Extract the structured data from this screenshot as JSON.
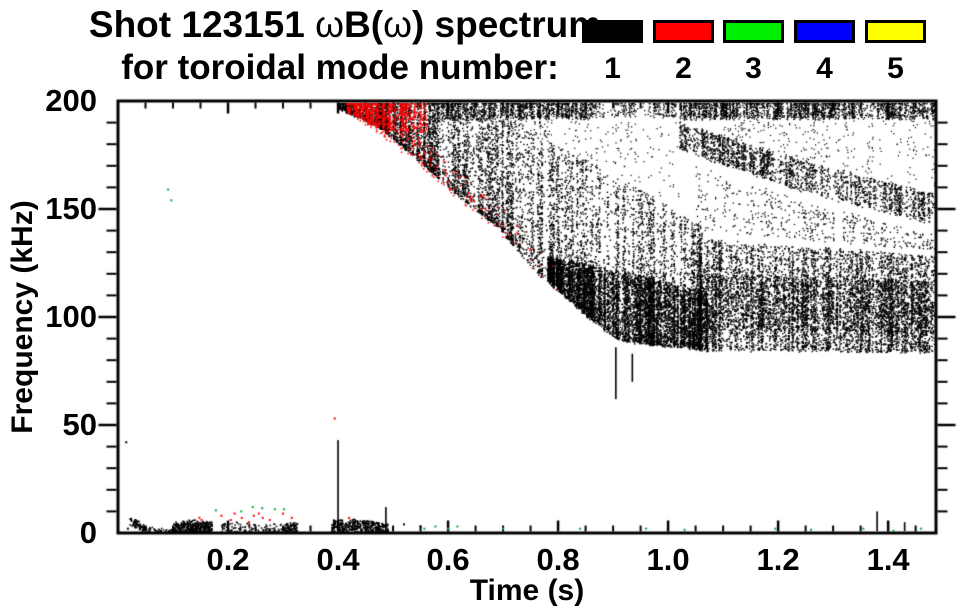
{
  "title": {
    "prefix": "Shot 123151 ",
    "omega1": "ω",
    "mid": "B(",
    "omega2": "ω",
    "suffix": ") spectrum",
    "line2": "for toroidal mode number:"
  },
  "legend": {
    "items": [
      {
        "label": "1",
        "color": "#000000"
      },
      {
        "label": "2",
        "color": "#ff0000"
      },
      {
        "label": "3",
        "color": "#00ee00"
      },
      {
        "label": "4",
        "color": "#0000ff"
      },
      {
        "label": "5",
        "color": "#ffff00"
      }
    ]
  },
  "chart_data": {
    "type": "scatter",
    "title": "Shot 123151 ωB(ω) spectrum",
    "subtitle": "for toroidal mode number:",
    "xlabel": "Time (s)",
    "ylabel": "Frequency (kHz)",
    "xlim": [
      0,
      1.487
    ],
    "ylim": [
      0,
      200
    ],
    "grid": false,
    "legend_position": "top-right",
    "x_major_ticks": [
      0.2,
      0.4,
      0.6,
      0.8,
      1.0,
      1.2,
      1.4
    ],
    "x_tick_labels": [
      "0.2",
      "0.4",
      "0.6",
      "0.8",
      "1.0",
      "1.2",
      "1.4"
    ],
    "x_minor_step": 0.05,
    "y_major_ticks": [
      0,
      50,
      100,
      150,
      200
    ],
    "y_tick_labels": [
      "0",
      "50",
      "100",
      "150",
      "200"
    ],
    "y_minor_step": 10,
    "modes": [
      {
        "mode": 1,
        "color": "#000000"
      },
      {
        "mode": 2,
        "color": "#ff0000"
      },
      {
        "mode": 3,
        "color": "#00ee00"
      },
      {
        "mode": 4,
        "color": "#0000ff"
      },
      {
        "mode": 5,
        "color": "#ffff00"
      }
    ],
    "seed": 123151,
    "bands": [
      {
        "name": "main-chirp-cloud",
        "color": "#000000",
        "t": [
          0.4,
          1.07
        ],
        "upper": [
          [
            0.4,
            200
          ],
          [
            0.62,
            200
          ],
          [
            0.7,
            191
          ],
          [
            0.8,
            179
          ],
          [
            0.9,
            166
          ],
          [
            1.0,
            152
          ],
          [
            1.07,
            140
          ]
        ],
        "lower": [
          [
            0.4,
            197
          ],
          [
            0.47,
            189
          ],
          [
            0.55,
            172
          ],
          [
            0.62,
            156
          ],
          [
            0.69,
            142
          ],
          [
            0.76,
            121
          ],
          [
            0.84,
            104
          ],
          [
            0.91,
            90
          ],
          [
            0.98,
            87
          ],
          [
            1.07,
            86
          ]
        ],
        "n": 9000,
        "bias": 1.45,
        "streak": 1.6,
        "size": 1.4
      },
      {
        "name": "dense-core",
        "color": "#000000",
        "t": [
          0.78,
          1.07
        ],
        "upper": [
          [
            0.78,
            128
          ],
          [
            0.9,
            122
          ],
          [
            1.0,
            116
          ],
          [
            1.07,
            112
          ]
        ],
        "lower": [
          [
            0.78,
            118
          ],
          [
            0.84,
            103
          ],
          [
            0.91,
            89
          ],
          [
            1.07,
            85
          ]
        ],
        "n": 5200,
        "bias": 1.0,
        "streak": 1.2,
        "size": 1.5
      },
      {
        "name": "right-mass",
        "color": "#000000",
        "t": [
          1.05,
          1.487
        ],
        "upper": [
          [
            1.05,
            137
          ],
          [
            1.2,
            133
          ],
          [
            1.35,
            131
          ],
          [
            1.487,
            128
          ]
        ],
        "lower": [
          [
            1.05,
            85
          ],
          [
            1.487,
            84
          ]
        ],
        "n": 6200,
        "bias": 1.15,
        "streak": 1.8,
        "size": 1.4
      },
      {
        "name": "right-core-stripe",
        "color": "#000000",
        "t": [
          1.05,
          1.487
        ],
        "upper": [
          [
            1.05,
            120
          ],
          [
            1.487,
            117
          ]
        ],
        "lower": [
          [
            1.05,
            95
          ],
          [
            1.487,
            92
          ]
        ],
        "n": 2300,
        "bias": 1.0,
        "streak": 1.6,
        "size": 1.5
      },
      {
        "name": "top-band-early",
        "color": "#000000",
        "t": [
          0.58,
          0.86
        ],
        "upper": [
          [
            0.58,
            200
          ],
          [
            0.86,
            200
          ]
        ],
        "lower": [
          [
            0.58,
            192
          ],
          [
            0.86,
            192
          ]
        ],
        "n": 1400,
        "bias": 1.0,
        "streak": 1.4,
        "size": 1.3
      },
      {
        "name": "top-band-thin",
        "color": "#000000",
        "t": [
          0.86,
          1.02
        ],
        "upper": [
          [
            0.86,
            200
          ],
          [
            1.02,
            200
          ]
        ],
        "lower": [
          [
            0.86,
            193
          ],
          [
            1.02,
            193
          ]
        ],
        "n": 260,
        "bias": 1.0,
        "streak": 1.6,
        "size": 1.3
      },
      {
        "name": "top-band-late",
        "color": "#000000",
        "t": [
          1.02,
          1.487
        ],
        "upper": [
          [
            1.02,
            200
          ],
          [
            1.487,
            200
          ]
        ],
        "lower": [
          [
            1.02,
            192
          ],
          [
            1.487,
            192
          ]
        ],
        "n": 2300,
        "bias": 1.0,
        "streak": 1.5,
        "size": 1.3
      },
      {
        "name": "diagonal-band",
        "color": "#000000",
        "t": [
          1.02,
          1.487
        ],
        "upper": [
          [
            1.02,
            190
          ],
          [
            1.25,
            172
          ],
          [
            1.487,
            157
          ]
        ],
        "lower": [
          [
            1.02,
            178
          ],
          [
            1.25,
            158
          ],
          [
            1.487,
            143
          ]
        ],
        "n": 2100,
        "bias": 1.0,
        "streak": 1.9,
        "size": 1.4
      },
      {
        "name": "between-sparse",
        "color": "#000000",
        "t": [
          1.05,
          1.487
        ],
        "upper": [
          [
            1.05,
            171
          ],
          [
            1.25,
            153
          ],
          [
            1.487,
            138
          ]
        ],
        "lower": [
          [
            1.05,
            140
          ],
          [
            1.25,
            136
          ],
          [
            1.487,
            131
          ]
        ],
        "n": 520,
        "bias": 1.0,
        "streak": 2.2,
        "size": 1.3
      },
      {
        "name": "upper-right-specks",
        "color": "#000000",
        "t": [
          1.1,
          1.487
        ],
        "upper": [
          [
            1.1,
            191
          ],
          [
            1.487,
            191
          ]
        ],
        "lower": [
          [
            1.1,
            183
          ],
          [
            1.25,
            173
          ],
          [
            1.487,
            158
          ]
        ],
        "n": 260,
        "bias": 1.0,
        "streak": 2.5,
        "size": 1.2
      },
      {
        "name": "gap-specks",
        "color": "#000000",
        "t": [
          0.7,
          1.02
        ],
        "upper": [
          [
            0.7,
            191
          ],
          [
            1.02,
            191
          ]
        ],
        "lower": [
          [
            0.7,
            190
          ],
          [
            0.8,
            180
          ],
          [
            0.9,
            167
          ],
          [
            1.02,
            152
          ]
        ],
        "n": 200,
        "bias": 1.0,
        "streak": 2.4,
        "size": 1.2
      },
      {
        "name": "red-onset-blob",
        "color": "#ff0000",
        "t": [
          0.415,
          0.56
        ],
        "upper": [
          [
            0.415,
            200
          ],
          [
            0.56,
            200
          ]
        ],
        "lower": [
          [
            0.415,
            195
          ],
          [
            0.46,
            189
          ],
          [
            0.52,
            186
          ],
          [
            0.56,
            184
          ]
        ],
        "n": 800,
        "bias": 1.0,
        "streak": 1.2,
        "size": 1.5
      },
      {
        "name": "red-edge-trail",
        "color": "#ff0000",
        "t": [
          0.44,
          0.8
        ],
        "upper": [
          [
            0.44,
            201
          ],
          [
            0.55,
            183
          ],
          [
            0.62,
            167
          ],
          [
            0.69,
            153
          ],
          [
            0.76,
            132
          ],
          [
            0.8,
            123
          ]
        ],
        "lower": [
          [
            0.44,
            191
          ],
          [
            0.55,
            170
          ],
          [
            0.62,
            154
          ],
          [
            0.69,
            140
          ],
          [
            0.76,
            119
          ],
          [
            0.8,
            111
          ]
        ],
        "n": 560,
        "bias": 1.0,
        "streak": 1.3,
        "size": 1.5,
        "tdecay": 1.1
      },
      {
        "name": "low-f-cluster-a",
        "color": "#000000",
        "t": [
          0.02,
          0.05
        ],
        "upper": [
          [
            0.02,
            8
          ],
          [
            0.05,
            3
          ]
        ],
        "lower": [
          [
            0.02,
            4
          ],
          [
            0.05,
            0.5
          ]
        ],
        "n": 80,
        "size": 1.6
      },
      {
        "name": "low-f-sparse-ab",
        "color": "#000000",
        "t": [
          0.05,
          0.1
        ],
        "upper": [
          [
            0.05,
            3
          ],
          [
            0.1,
            2
          ]
        ],
        "lower": [
          [
            0.05,
            0.3
          ],
          [
            0.1,
            0.3
          ]
        ],
        "n": 45,
        "size": 1.5
      },
      {
        "name": "low-f-cluster-b",
        "color": "#000000",
        "t": [
          0.1,
          0.17
        ],
        "upper": [
          [
            0.1,
            5
          ],
          [
            0.13,
            6
          ],
          [
            0.17,
            5
          ]
        ],
        "lower": [
          [
            0.1,
            0.5
          ],
          [
            0.17,
            0.5
          ]
        ],
        "n": 360,
        "size": 1.6
      },
      {
        "name": "low-f-cluster-c",
        "color": "#000000",
        "t": [
          0.185,
          0.3
        ],
        "upper": [
          [
            0.185,
            5
          ],
          [
            0.3,
            4
          ]
        ],
        "lower": [
          [
            0.185,
            0.5
          ],
          [
            0.3,
            0.5
          ]
        ],
        "n": 120,
        "size": 1.5
      },
      {
        "name": "low-f-cluster-d",
        "color": "#000000",
        "t": [
          0.3,
          0.325
        ],
        "upper": [
          [
            0.3,
            5
          ],
          [
            0.325,
            5
          ]
        ],
        "lower": [
          [
            0.3,
            0.8
          ],
          [
            0.325,
            0.8
          ]
        ],
        "n": 80,
        "size": 1.6
      },
      {
        "name": "low-f-cluster-e",
        "color": "#000000",
        "t": [
          0.387,
          0.49
        ],
        "upper": [
          [
            0.387,
            6
          ],
          [
            0.43,
            6
          ],
          [
            0.49,
            5
          ]
        ],
        "lower": [
          [
            0.387,
            0.5
          ],
          [
            0.49,
            0.5
          ]
        ],
        "n": 380,
        "size": 1.6
      }
    ],
    "streaks": [
      {
        "t": 0.4,
        "f": [
          0,
          43
        ],
        "color": "#000000"
      },
      {
        "t": 0.487,
        "f": [
          0,
          12
        ],
        "color": "#000000"
      },
      {
        "t": 0.905,
        "f": [
          62,
          86
        ],
        "color": "#000000"
      },
      {
        "t": 0.935,
        "f": [
          70,
          83
        ],
        "color": "#000000"
      },
      {
        "t": 1.38,
        "f": [
          0,
          10
        ],
        "color": "#000000"
      },
      {
        "t": 1.43,
        "f": [
          0,
          5
        ],
        "color": "#000000"
      }
    ],
    "dots": [
      {
        "name": "red-low-f-dots",
        "color": "#ff0000",
        "size": 2,
        "pts": [
          [
            0.148,
            7
          ],
          [
            0.152,
            6
          ],
          [
            0.188,
            8
          ],
          [
            0.205,
            6
          ],
          [
            0.212,
            9
          ],
          [
            0.225,
            7
          ],
          [
            0.238,
            5
          ],
          [
            0.247,
            8
          ],
          [
            0.256,
            9
          ],
          [
            0.263,
            7
          ],
          [
            0.276,
            6
          ],
          [
            0.3,
            9
          ],
          [
            0.316,
            7
          ],
          [
            0.394,
            53
          ],
          [
            0.42,
            7
          ]
        ]
      },
      {
        "name": "green-dots",
        "color": "#00aa33",
        "size": 2,
        "pts": [
          [
            0.091,
            159
          ],
          [
            0.097,
            154
          ],
          [
            0.178,
            10.5
          ],
          [
            0.224,
            10
          ],
          [
            0.245,
            12
          ],
          [
            0.262,
            11.5
          ],
          [
            0.285,
            11
          ],
          [
            0.302,
            11
          ],
          [
            0.557,
            2
          ],
          [
            0.577,
            3
          ],
          [
            0.6,
            2
          ],
          [
            0.617,
            3
          ],
          [
            0.7,
            2
          ],
          [
            0.84,
            2
          ],
          [
            0.96,
            2
          ],
          [
            1.03,
            1.5
          ],
          [
            1.195,
            2
          ],
          [
            1.26,
            1.5
          ],
          [
            1.355,
            2
          ],
          [
            1.41,
            1
          ],
          [
            1.46,
            2
          ]
        ]
      },
      {
        "name": "black-isolated-dots",
        "color": "#000000",
        "size": 2,
        "pts": [
          [
            0.015,
            42
          ],
          [
            0.018,
            2
          ],
          [
            0.52,
            4
          ],
          [
            0.55,
            3
          ]
        ]
      }
    ]
  }
}
